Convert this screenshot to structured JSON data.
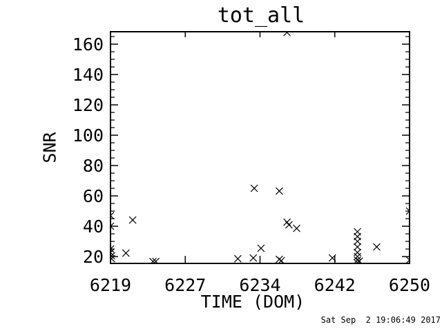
{
  "window": {
    "background": "#ffffff",
    "foreground": "#000000"
  },
  "timestamp": "Sat Sep  2 19:06:49 2017",
  "chart_data": {
    "type": "scatter",
    "title": "tot_all",
    "xlabel": "TIME (DOM)",
    "ylabel": "SNR",
    "marker": "x",
    "marker_color": "#000000",
    "grid": false,
    "legend": false,
    "xlim": [
      6219,
      6250
    ],
    "ylim": [
      15.5,
      168.2
    ],
    "xticks": [
      {
        "value": 6219,
        "label": "6219"
      },
      {
        "value": 6226.75,
        "label": "6227"
      },
      {
        "value": 6234.5,
        "label": "6234"
      },
      {
        "value": 6242.25,
        "label": "6242"
      },
      {
        "value": 6250,
        "label": "6250"
      }
    ],
    "yticks": [
      {
        "value": 20,
        "label": "20"
      },
      {
        "value": 40,
        "label": "40"
      },
      {
        "value": 60,
        "label": "60"
      },
      {
        "value": 80,
        "label": "80"
      },
      {
        "value": 100,
        "label": "100"
      },
      {
        "value": 120,
        "label": "120"
      },
      {
        "value": 140,
        "label": "140"
      },
      {
        "value": 160,
        "label": "160"
      }
    ],
    "y_minor_step": 5,
    "points": [
      {
        "x": 6219.0,
        "y": 47.0
      },
      {
        "x": 6219.0,
        "y": 40.0
      },
      {
        "x": 6219.0,
        "y": 25.0
      },
      {
        "x": 6219.0,
        "y": 22.7
      },
      {
        "x": 6219.1,
        "y": 20.5
      },
      {
        "x": 6219.1,
        "y": 18.6
      },
      {
        "x": 6220.6,
        "y": 22.3
      },
      {
        "x": 6221.3,
        "y": 44.1
      },
      {
        "x": 6223.4,
        "y": 16.8
      },
      {
        "x": 6223.7,
        "y": 16.8
      },
      {
        "x": 6232.2,
        "y": 18.6
      },
      {
        "x": 6233.8,
        "y": 19.1
      },
      {
        "x": 6233.9,
        "y": 65.0
      },
      {
        "x": 6234.6,
        "y": 25.5
      },
      {
        "x": 6236.5,
        "y": 63.2
      },
      {
        "x": 6236.5,
        "y": 18.2
      },
      {
        "x": 6236.7,
        "y": 17.3
      },
      {
        "x": 6237.3,
        "y": 167.7
      },
      {
        "x": 6237.3,
        "y": 42.7
      },
      {
        "x": 6237.5,
        "y": 40.9
      },
      {
        "x": 6238.3,
        "y": 38.6
      },
      {
        "x": 6242.0,
        "y": 19.1
      },
      {
        "x": 6244.6,
        "y": 36.4
      },
      {
        "x": 6244.6,
        "y": 33.2
      },
      {
        "x": 6244.6,
        "y": 30.0
      },
      {
        "x": 6244.6,
        "y": 26.4
      },
      {
        "x": 6244.6,
        "y": 22.7
      },
      {
        "x": 6244.6,
        "y": 20.0
      },
      {
        "x": 6244.6,
        "y": 17.7
      },
      {
        "x": 6244.8,
        "y": 17.0
      },
      {
        "x": 6244.6,
        "y": 15.9
      },
      {
        "x": 6246.6,
        "y": 26.4
      },
      {
        "x": 6250.0,
        "y": 50.0
      },
      {
        "x": 6250.0,
        "y": 17.7
      }
    ]
  }
}
